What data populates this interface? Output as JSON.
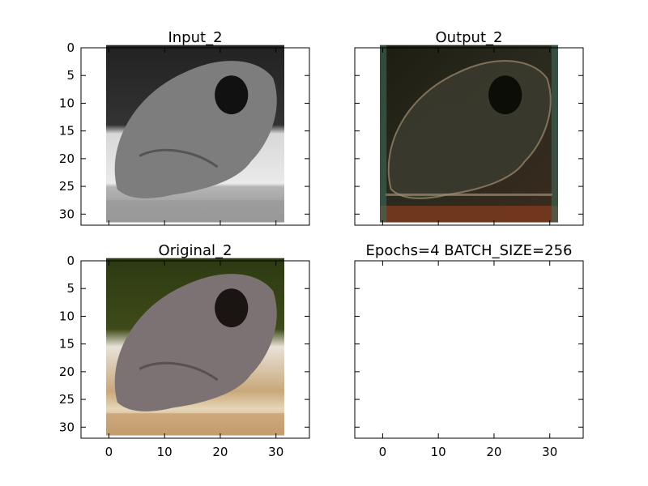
{
  "figure": {
    "panels": [
      {
        "title": "Input_2",
        "image": "grayscale-frog",
        "show_y_labels": true,
        "show_x_labels": false
      },
      {
        "title": "Output_2",
        "image": "reconstructed-color-frog",
        "show_y_labels": false,
        "show_x_labels": false
      },
      {
        "title": "Original_2",
        "image": "color-frog",
        "show_y_labels": true,
        "show_x_labels": false
      },
      {
        "title": "Epochs=4 BATCH_SIZE=256",
        "image": null,
        "show_y_labels": false,
        "show_x_labels": true
      }
    ]
  },
  "chart_data": {
    "type": "image-grid",
    "panels": [
      "Input_2",
      "Output_2",
      "Original_2",
      "Epochs=4 BATCH_SIZE=256"
    ],
    "xlim": [
      -5,
      36
    ],
    "ylim": [
      32,
      0
    ],
    "xticks": [
      0,
      10,
      20,
      30
    ],
    "yticks": [
      0,
      5,
      10,
      15,
      20,
      25,
      30
    ],
    "image_extent": [
      -0.5,
      31.5
    ]
  }
}
